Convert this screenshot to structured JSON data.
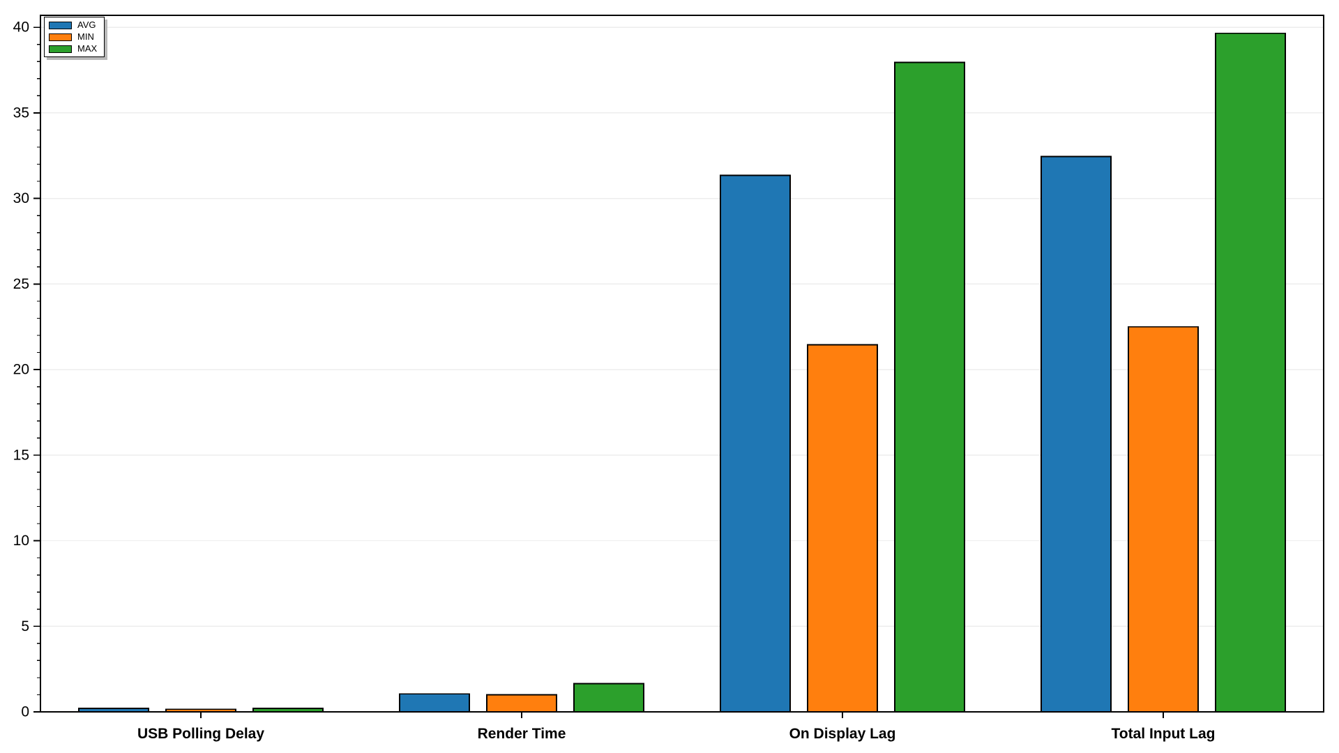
{
  "chart_data": {
    "type": "bar",
    "title": "",
    "xlabel": "",
    "ylabel": "",
    "categories": [
      "USB Polling Delay",
      "Render Time",
      "On Display Lag",
      "Total Input Lag"
    ],
    "series": [
      {
        "name": "AVG",
        "color": "#1f77b4",
        "values": [
          0.2,
          1.05,
          31.35,
          32.45
        ]
      },
      {
        "name": "MIN",
        "color": "#ff7f0e",
        "values": [
          0.15,
          1.0,
          21.45,
          22.5
        ]
      },
      {
        "name": "MAX",
        "color": "#2ca02c",
        "values": [
          0.2,
          1.65,
          37.95,
          39.65
        ]
      }
    ],
    "ylim": [
      0,
      40.7
    ],
    "yticks": [
      0,
      5,
      10,
      15,
      20,
      25,
      30,
      35,
      40
    ],
    "minor_tick_step": 1,
    "grid": "horizontal-major",
    "legend_position": "upper-left",
    "styles": {
      "bar_edge_color": "#000000",
      "grid_color": "#ededed",
      "axis_color": "#000000",
      "background": "#ffffff",
      "tick_label_color": "#000000"
    }
  }
}
